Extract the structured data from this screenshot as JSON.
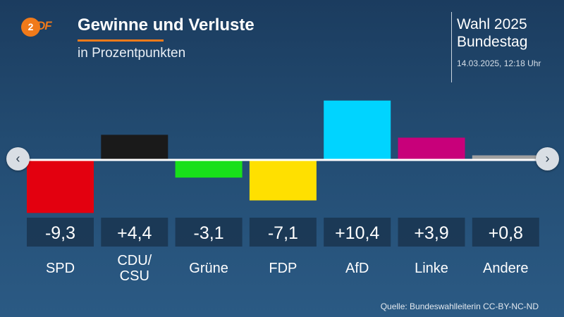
{
  "header": {
    "logo_text": "2DF",
    "title": "Gewinne und Verluste",
    "subtitle": "in Prozentpunkten",
    "election_line1": "Wahl 2025",
    "election_line2": "Bundestag",
    "timestamp": "14.03.2025, 12:18 Uhr"
  },
  "footer": {
    "source": "Quelle: Bundeswahlleiterin CC-BY-NC-ND"
  },
  "nav": {
    "prev_icon": "chevron-left-icon",
    "next_icon": "chevron-right-icon",
    "prev_glyph": "‹",
    "next_glyph": "›"
  },
  "chart_data": {
    "type": "bar",
    "title": "Gewinne und Verluste",
    "subtitle": "in Prozentpunkten",
    "categories": [
      "SPD",
      "CDU/ CSU",
      "Grüne",
      "FDP",
      "AfD",
      "Linke",
      "Andere"
    ],
    "values": [
      -9.3,
      4.4,
      -3.1,
      -7.1,
      10.4,
      3.9,
      0.8
    ],
    "value_labels": [
      "-9,3",
      "+4,4",
      "-3,1",
      "-7,1",
      "+10,4",
      "+3,9",
      "+0,8"
    ],
    "colors": [
      "#e3000f",
      "#1a1a1a",
      "#18e01a",
      "#ffe000",
      "#00d4ff",
      "#c8007a",
      "#a0a0a0"
    ],
    "xlabel": "",
    "ylabel": "",
    "grid": false,
    "legend": "none"
  }
}
